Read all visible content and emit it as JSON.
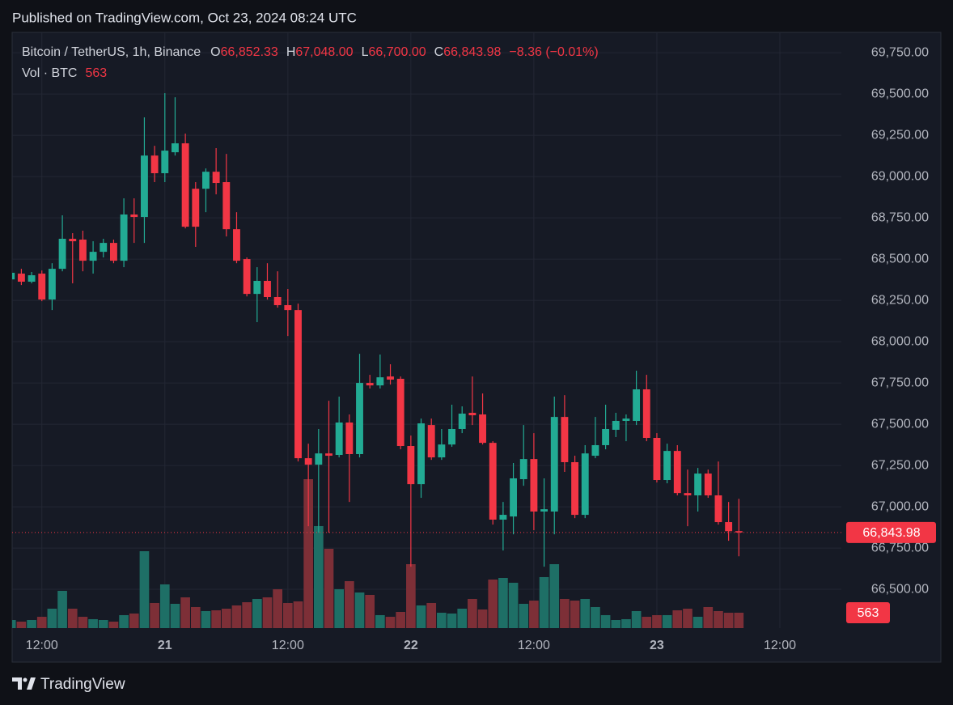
{
  "chart_data": {
    "type": "candlestick",
    "published": "Published on TradingView.com, Oct 23, 2024 08:24 UTC",
    "symbol": "Bitcoin / TetherUS, 1h, Binance",
    "legend": {
      "o": "O",
      "open": "66,852.33",
      "h": "H",
      "high": "67,048.00",
      "l": "L",
      "low": "66,700.00",
      "c": "C",
      "close": "66,843.98",
      "change": "−8.36 (−0.01%)"
    },
    "volume_title": "Vol · BTC",
    "last_price_label": "66,843.98",
    "brand": "TradingView",
    "up_color": "#22ab94",
    "down_color": "#f23645",
    "volume_up_color": "#1e6f66",
    "volume_down_color": "#7d2f37",
    "open": [
      68377,
      68412,
      68363,
      68412,
      68255,
      68441,
      68623,
      68618,
      68490,
      68544,
      68598,
      68490,
      68770,
      68755,
      69127,
      69020,
      69147,
      69201,
      68926,
      68926,
      69029,
      68966,
      68681,
      68500,
      68289,
      68368,
      68270,
      68221,
      68191,
      67294,
      67255,
      67323,
      67314,
      67510,
      67319,
      67750,
      67735,
      67789,
      67775,
      67368,
      67137,
      67495,
      67299,
      67377,
      67471,
      67569,
      67559,
      67387,
      66922,
      66941,
      67167,
      67289,
      66971,
      66971,
      67544,
      67270,
      66951,
      67309,
      67373,
      67466,
      67520,
      67520,
      67711,
      67417,
      67162,
      67338,
      67083,
      67069,
      67201,
      67069,
      66907,
      66852.33
    ],
    "high": [
      68436,
      68441,
      68422,
      68431,
      68475,
      68765,
      68657,
      68672,
      68608,
      68623,
      68618,
      68868,
      68868,
      69358,
      69186,
      69505,
      69480,
      69260,
      68966,
      69049,
      69172,
      69137,
      68784,
      68510,
      68451,
      68475,
      68426,
      68319,
      68230,
      67382,
      67471,
      67642,
      67667,
      67559,
      67926,
      67799,
      67922,
      67863,
      67789,
      67431,
      67534,
      67534,
      67471,
      67618,
      67608,
      67789,
      67686,
      67397,
      67029,
      67265,
      67495,
      67446,
      67172,
      67667,
      67676,
      67309,
      67373,
      67544,
      67618,
      67569,
      67559,
      67824,
      67799,
      67446,
      67382,
      67373,
      67225,
      67235,
      67225,
      67274,
      67029,
      67048
    ],
    "low": [
      68363,
      68343,
      68353,
      68245,
      68191,
      68426,
      68353,
      68426,
      68412,
      68510,
      68475,
      68451,
      68598,
      68598,
      68966,
      68966,
      69127,
      68686,
      68574,
      68784,
      68892,
      68637,
      68475,
      68274,
      68118,
      68255,
      68206,
      68034,
      67274,
      66882,
      66843,
      66843,
      67299,
      67029,
      67299,
      67716,
      67716,
      67740,
      67348,
      66637,
      67054,
      67284,
      67284,
      67363,
      67446,
      67495,
      67377,
      66892,
      66735,
      66833,
      67127,
      66858,
      66637,
      66833,
      67211,
      66931,
      66931,
      67294,
      67348,
      67422,
      67397,
      67495,
      67397,
      67147,
      67142,
      67069,
      66882,
      66971,
      67054,
      66892,
      66794,
      66700
    ],
    "close": [
      68417,
      68363,
      68402,
      68255,
      68441,
      68623,
      68608,
      68490,
      68544,
      68598,
      68490,
      68770,
      68755,
      69127,
      69020,
      69157,
      69201,
      68696,
      68696,
      69029,
      68961,
      68681,
      68490,
      68289,
      68368,
      68270,
      68221,
      68191,
      67294,
      67255,
      67323,
      67309,
      67510,
      67319,
      67750,
      67735,
      67784,
      67770,
      67368,
      67137,
      67505,
      67299,
      67377,
      67471,
      67564,
      67554,
      67387,
      66922,
      66951,
      67172,
      67289,
      66971,
      66985,
      67544,
      67270,
      66951,
      67323,
      67373,
      67471,
      67520,
      67534,
      67711,
      67417,
      67162,
      67338,
      67083,
      67069,
      67201,
      67069,
      66907,
      66852,
      66843.98
    ],
    "volume": [
      296,
      237,
      296,
      414,
      710,
      1362,
      710,
      414,
      326,
      296,
      237,
      474,
      533,
      2812,
      918,
      1598,
      888,
      1125,
      770,
      622,
      651,
      710,
      829,
      947,
      1066,
      1125,
      1421,
      918,
      977,
      5446,
      3730,
      2901,
      1421,
      1717,
      1302,
      1214,
      474,
      414,
      592,
      2338,
      829,
      918,
      562,
      533,
      710,
      1066,
      681,
      1776,
      1835,
      1658,
      888,
      1006,
      1865,
      2338,
      1066,
      1006,
      1066,
      770,
      474,
      296,
      326,
      622,
      414,
      474,
      474,
      651,
      710,
      414,
      770,
      622,
      562,
      563
    ],
    "xlim": [
      0.1,
      81
    ],
    "xticks": [
      {
        "value": 3,
        "label": "12:00"
      },
      {
        "value": 15,
        "label": "21"
      },
      {
        "value": 27,
        "label": "12:00"
      },
      {
        "value": 39,
        "label": "22"
      },
      {
        "value": 51,
        "label": "12:00"
      },
      {
        "value": 63,
        "label": "23"
      },
      {
        "value": 75,
        "label": "12:00"
      }
    ],
    "ylim": [
      66265,
      69873
    ],
    "yticks": [
      {
        "value": 66500,
        "label": "66,500.00"
      },
      {
        "value": 66750,
        "label": "66,750.00"
      },
      {
        "value": 67000,
        "label": "67,000.00"
      },
      {
        "value": 67250,
        "label": "67,250.00"
      },
      {
        "value": 67500,
        "label": "67,500.00"
      },
      {
        "value": 67750,
        "label": "67,750.00"
      },
      {
        "value": 68000,
        "label": "68,000.00"
      },
      {
        "value": 68250,
        "label": "68,250.00"
      },
      {
        "value": 68500,
        "label": "68,500.00"
      },
      {
        "value": 68750,
        "label": "68,750.00"
      },
      {
        "value": 69000,
        "label": "69,000.00"
      },
      {
        "value": 69250,
        "label": "69,250.00"
      },
      {
        "value": 69500,
        "label": "69,500.00"
      },
      {
        "value": 69750,
        "label": "69,750.00"
      }
    ],
    "grid": true
  }
}
